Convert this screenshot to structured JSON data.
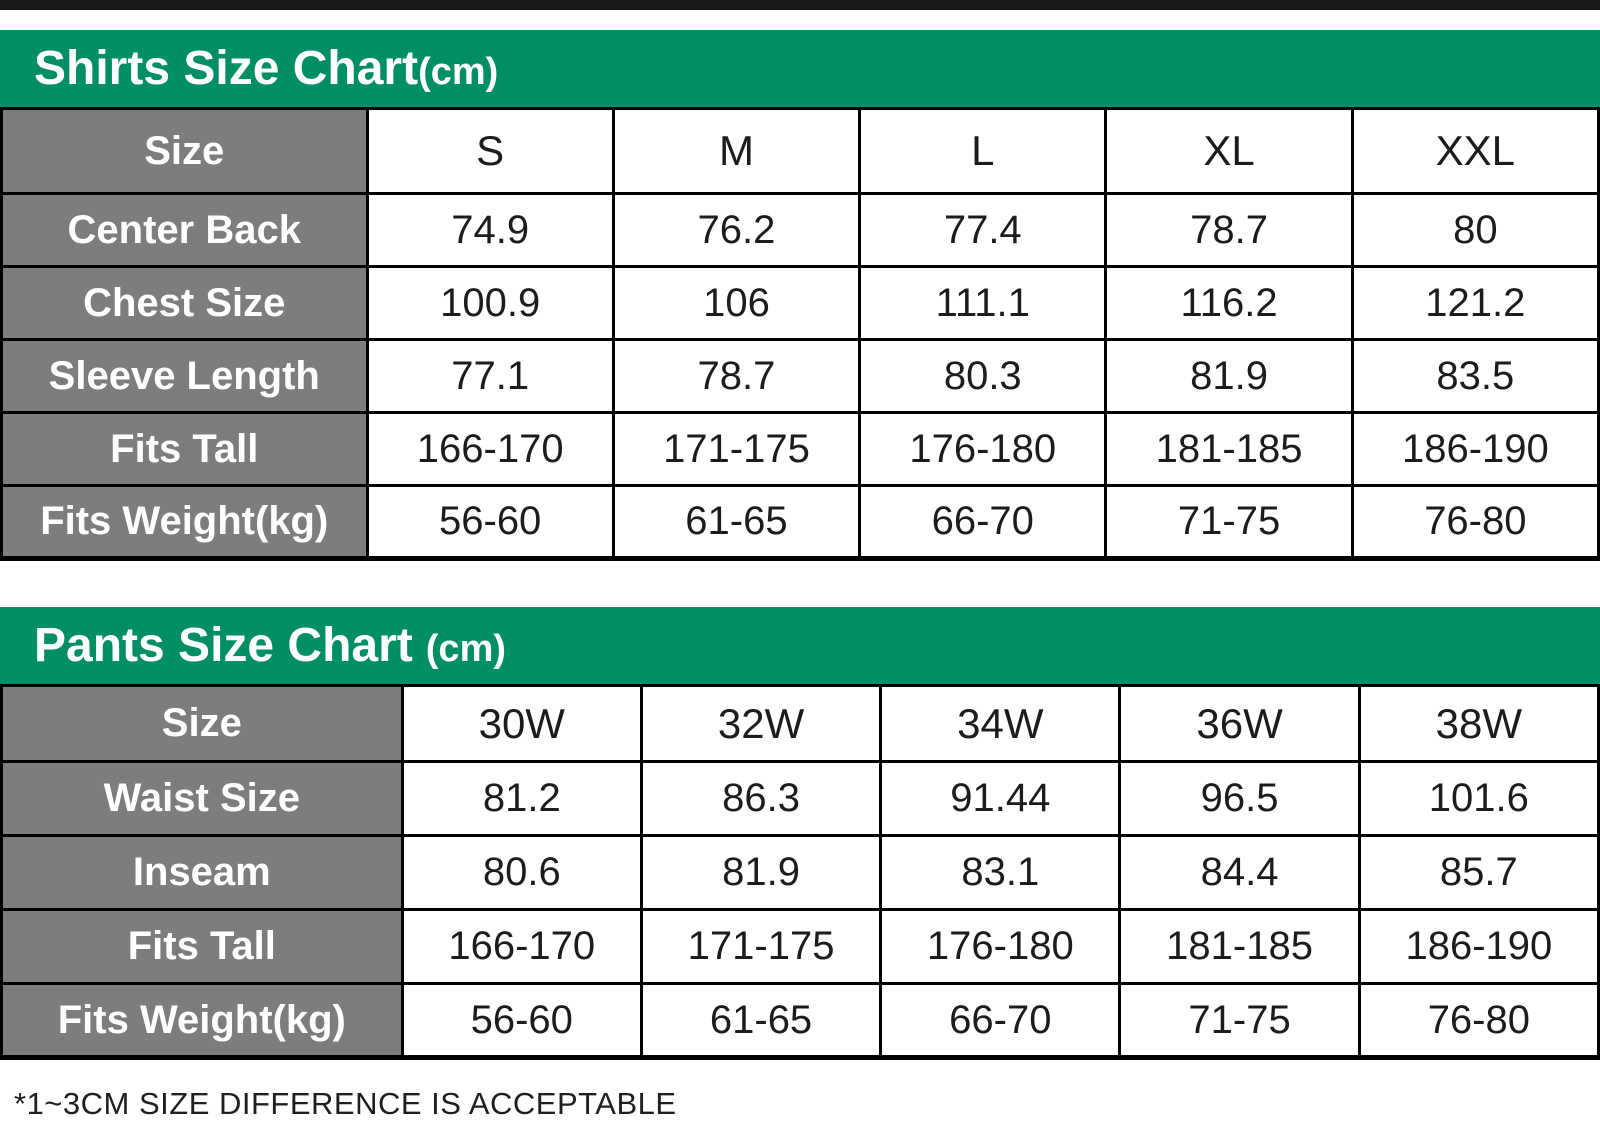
{
  "colors": {
    "banner_green": "#008E65",
    "banner_text": "#ffffff",
    "label_gray": "#7d7d7d",
    "label_text": "#ffffff",
    "cell_text": "#1c1c1c",
    "border_color": "#000000",
    "top_bar_color": "#181818"
  },
  "banners": {
    "shirts": {
      "title": "Shirts Size Chart",
      "unit": "(cm)"
    },
    "pants": {
      "title": "Pants Size Chart",
      "unit": "(cm)"
    }
  },
  "chart_data": [
    {
      "type": "table",
      "title": "Shirts Size Chart(cm)",
      "columns": [
        "Size",
        "S",
        "M",
        "L",
        "XL",
        "XXL"
      ],
      "rows": [
        {
          "label": "Center Back",
          "values": [
            "74.9",
            "76.2",
            "77.4",
            "78.7",
            "80"
          ]
        },
        {
          "label": "Chest Size",
          "values": [
            "100.9",
            "106",
            "111.1",
            "116.2",
            "121.2"
          ]
        },
        {
          "label": "Sleeve Length",
          "values": [
            "77.1",
            "78.7",
            "80.3",
            "81.9",
            "83.5"
          ]
        },
        {
          "label": "Fits Tall",
          "values": [
            "166-170",
            "171-175",
            "176-180",
            "181-185",
            "186-190"
          ]
        },
        {
          "label": "Fits Weight(kg)",
          "values": [
            "56-60",
            "61-65",
            "66-70",
            "71-75",
            "76-80"
          ]
        }
      ]
    },
    {
      "type": "table",
      "title": "Pants Size Chart (cm)",
      "columns": [
        "Size",
        "30W",
        "32W",
        "34W",
        "36W",
        "38W"
      ],
      "rows": [
        {
          "label": "Waist Size",
          "values": [
            "81.2",
            "86.3",
            "91.44",
            "96.5",
            "101.6"
          ]
        },
        {
          "label": "Inseam",
          "values": [
            "80.6",
            "81.9",
            "83.1",
            "84.4",
            "85.7"
          ]
        },
        {
          "label": "Fits Tall",
          "values": [
            "166-170",
            "171-175",
            "176-180",
            "181-185",
            "186-190"
          ]
        },
        {
          "label": "Fits Weight(kg)",
          "values": [
            "56-60",
            "61-65",
            "66-70",
            "71-75",
            "76-80"
          ]
        }
      ]
    }
  ],
  "footnote": "*1~3CM SIZE DIFFERENCE IS ACCEPTABLE"
}
